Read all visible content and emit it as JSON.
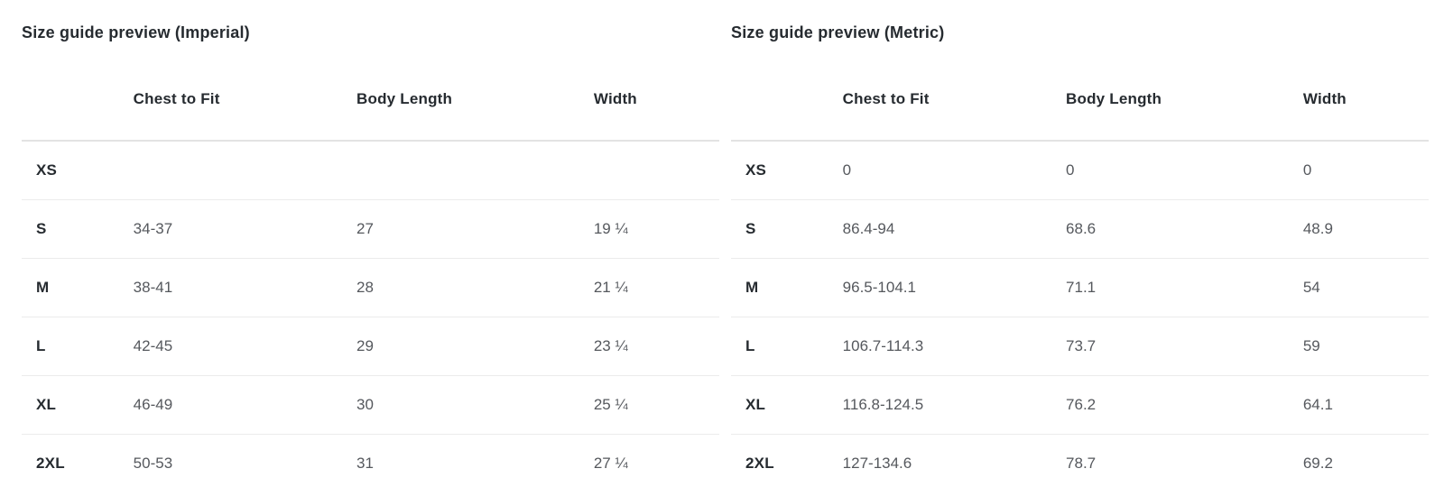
{
  "tables": [
    {
      "title": "Size guide preview (Imperial)",
      "columns": {
        "size": "",
        "chest": "Chest to Fit",
        "length": "Body Length",
        "width": "Width"
      },
      "rows": [
        {
          "size": "XS",
          "chest": "",
          "length": "",
          "width": ""
        },
        {
          "size": "S",
          "chest": "34-37",
          "length": "27",
          "width": "19 ¼"
        },
        {
          "size": "M",
          "chest": "38-41",
          "length": "28",
          "width": "21 ¼"
        },
        {
          "size": "L",
          "chest": "42-45",
          "length": "29",
          "width": "23 ¼"
        },
        {
          "size": "XL",
          "chest": "46-49",
          "length": "30",
          "width": "25 ¼"
        },
        {
          "size": "2XL",
          "chest": "50-53",
          "length": "31",
          "width": "27 ¼"
        }
      ]
    },
    {
      "title": "Size guide preview (Metric)",
      "columns": {
        "size": "",
        "chest": "Chest to Fit",
        "length": "Body Length",
        "width": "Width"
      },
      "rows": [
        {
          "size": "XS",
          "chest": "0",
          "length": "0",
          "width": "0"
        },
        {
          "size": "S",
          "chest": "86.4-94",
          "length": "68.6",
          "width": "48.9"
        },
        {
          "size": "M",
          "chest": "96.5-104.1",
          "length": "71.1",
          "width": "54"
        },
        {
          "size": "L",
          "chest": "106.7-114.3",
          "length": "73.7",
          "width": "59"
        },
        {
          "size": "XL",
          "chest": "116.8-124.5",
          "length": "76.2",
          "width": "64.1"
        },
        {
          "size": "2XL",
          "chest": "127-134.6",
          "length": "78.7",
          "width": "69.2"
        }
      ]
    }
  ],
  "colors": {
    "heading_text": "#262b30",
    "value_text": "#55585d",
    "header_divider": "#e3e3e3",
    "row_divider": "#ebebeb",
    "background": "#ffffff"
  }
}
